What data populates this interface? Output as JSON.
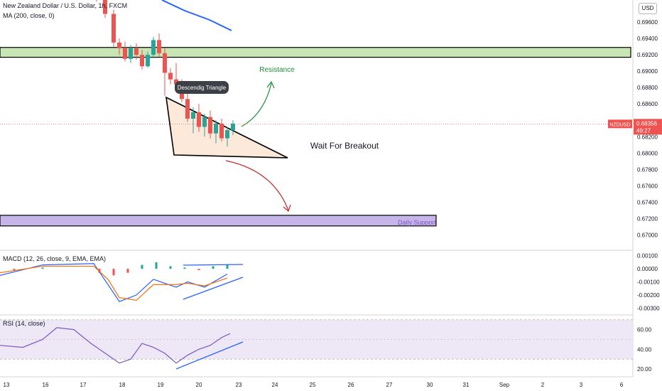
{
  "chart_data": [
    {
      "type": "candlestick",
      "title": "New Zealand Dollar / U.S. Dollar, 1h, FXCM",
      "indicator": "MA (200, close, 0)",
      "symbol": "NZDUSD",
      "last_price": "0.68356",
      "countdown": "49:27",
      "x_ticks": [
        "13",
        "16",
        "17",
        "18",
        "19",
        "20",
        "23",
        "24",
        "25",
        "26",
        "27",
        "30",
        "31",
        "Sep",
        "2",
        "3",
        "6"
      ],
      "y_ticks": [
        "0.69600",
        "0.69400",
        "0.69200",
        "0.69000",
        "0.68800",
        "0.68600",
        "0.68200",
        "0.68000",
        "0.67800",
        "0.67600",
        "0.67400",
        "0.67200",
        "0.67000"
      ],
      "ylim": [
        0.669,
        0.698
      ],
      "annotations": {
        "resistance_label": "Resistance",
        "triangle_label": "Descendig Triangle",
        "breakout_label": "Wait For Breakout",
        "support_label": "Daily Support"
      },
      "zones": {
        "resistance": [
          0.6917,
          0.6929
        ],
        "support": [
          0.6711,
          0.6724
        ]
      },
      "colors": {
        "up": "#26a69a",
        "down": "#ef5350",
        "ma": "#2962ff",
        "resistance_fill": "#c8e6b4",
        "support_fill": "#c5b5e8",
        "triangle_fill": "#fde9d9",
        "green_arrow": "#1e8c3a",
        "red_arrow": "#c62828"
      },
      "ma_points": [
        [
          16.8,
          0.6982
        ],
        [
          19.1,
          0.6958
        ]
      ],
      "candles": [
        [
          16.2,
          0.6995,
          0.7,
          0.6985,
          0.699
        ],
        [
          16.5,
          0.699,
          0.6995,
          0.6965,
          0.697
        ],
        [
          16.8,
          0.697,
          0.6975,
          0.693,
          0.6935
        ],
        [
          17.0,
          0.6935,
          0.694,
          0.692,
          0.6928
        ],
        [
          17.2,
          0.6928,
          0.6936,
          0.6912,
          0.6915
        ],
        [
          17.4,
          0.6915,
          0.6932,
          0.691,
          0.6928
        ],
        [
          17.6,
          0.6928,
          0.6934,
          0.6914,
          0.692
        ],
        [
          17.8,
          0.692,
          0.6926,
          0.6902,
          0.6906
        ],
        [
          18.0,
          0.6906,
          0.6924,
          0.6904,
          0.692
        ],
        [
          18.2,
          0.692,
          0.6942,
          0.6916,
          0.6938
        ],
        [
          18.4,
          0.6938,
          0.6946,
          0.6918,
          0.6922
        ],
        [
          18.6,
          0.6922,
          0.6928,
          0.687,
          0.6898
        ],
        [
          18.8,
          0.6898,
          0.6904,
          0.6884,
          0.689
        ],
        [
          19.0,
          0.689,
          0.691,
          0.688,
          0.6884
        ],
        [
          19.2,
          0.6884,
          0.689,
          0.6862,
          0.6866
        ],
        [
          19.4,
          0.6866,
          0.6874,
          0.6838,
          0.6842
        ],
        [
          19.6,
          0.6842,
          0.6856,
          0.6824,
          0.685
        ],
        [
          19.8,
          0.685,
          0.686,
          0.6826,
          0.6832
        ],
        [
          20.0,
          0.6832,
          0.6848,
          0.682,
          0.6844
        ],
        [
          20.2,
          0.6844,
          0.6852,
          0.6818,
          0.6824
        ],
        [
          20.4,
          0.6824,
          0.684,
          0.6812,
          0.6836
        ],
        [
          20.6,
          0.6836,
          0.6842,
          0.6814,
          0.6818
        ],
        [
          20.8,
          0.6818,
          0.6832,
          0.6808,
          0.6828
        ],
        [
          21.0,
          0.6828,
          0.684,
          0.6822,
          0.6836
        ]
      ],
      "macd": {
        "title": "MACD (12, 26, close, 9, EMA, EMA)",
        "y_ticks": [
          "0.00100",
          "0.00000",
          "-0.00100",
          "-0.00200",
          "-0.00300"
        ],
        "ylim": [
          -0.0033,
          0.0012
        ],
        "macd_line": [
          [
            13.0,
            -0.0005
          ],
          [
            14.5,
            0.0003
          ],
          [
            16.3,
            0.0004
          ],
          [
            16.8,
            -0.0012
          ],
          [
            17.2,
            -0.0025
          ],
          [
            17.8,
            -0.002
          ],
          [
            18.4,
            -0.0008
          ],
          [
            19.2,
            -0.0014
          ],
          [
            19.6,
            -0.001
          ],
          [
            20.2,
            -0.0014
          ],
          [
            21.0,
            -0.0004
          ]
        ],
        "signal_line": [
          [
            13.0,
            -0.0003
          ],
          [
            14.5,
            0.0002
          ],
          [
            16.3,
            0.0002
          ],
          [
            16.8,
            -0.0008
          ],
          [
            17.2,
            -0.0022
          ],
          [
            17.8,
            -0.0024
          ],
          [
            18.4,
            -0.0012
          ],
          [
            19.2,
            -0.0012
          ],
          [
            19.6,
            -0.0011
          ],
          [
            20.2,
            -0.0013
          ],
          [
            21.0,
            -0.0007
          ]
        ],
        "histogram": [
          [
            13.5,
            -0.0001
          ],
          [
            14.5,
            0.0001
          ],
          [
            16.5,
            -0.0003
          ],
          [
            17.0,
            -0.0005
          ],
          [
            17.5,
            -0.0003
          ],
          [
            18.0,
            0.0003
          ],
          [
            18.5,
            0.0005
          ],
          [
            19.0,
            0.0002
          ],
          [
            19.5,
            0.0001
          ],
          [
            20.0,
            -0.0001
          ],
          [
            20.5,
            0.0002
          ],
          [
            21.0,
            0.0003
          ]
        ]
      },
      "rsi": {
        "title": "RSI (14, close)",
        "y_ticks": [
          "60.00",
          "40.00",
          "20.00"
        ],
        "ylim": [
          15,
          72
        ],
        "bands": [
          30,
          70
        ],
        "mid": 50,
        "values": [
          [
            13.0,
            44
          ],
          [
            13.8,
            42
          ],
          [
            14.5,
            50
          ],
          [
            15.0,
            62
          ],
          [
            15.6,
            60
          ],
          [
            16.2,
            46
          ],
          [
            16.8,
            34
          ],
          [
            17.2,
            26
          ],
          [
            17.6,
            30
          ],
          [
            18.0,
            46
          ],
          [
            18.4,
            42
          ],
          [
            18.8,
            36
          ],
          [
            19.2,
            26
          ],
          [
            19.6,
            34
          ],
          [
            20.0,
            40
          ],
          [
            20.4,
            44
          ],
          [
            20.8,
            52
          ],
          [
            21.1,
            56
          ]
        ]
      }
    }
  ]
}
